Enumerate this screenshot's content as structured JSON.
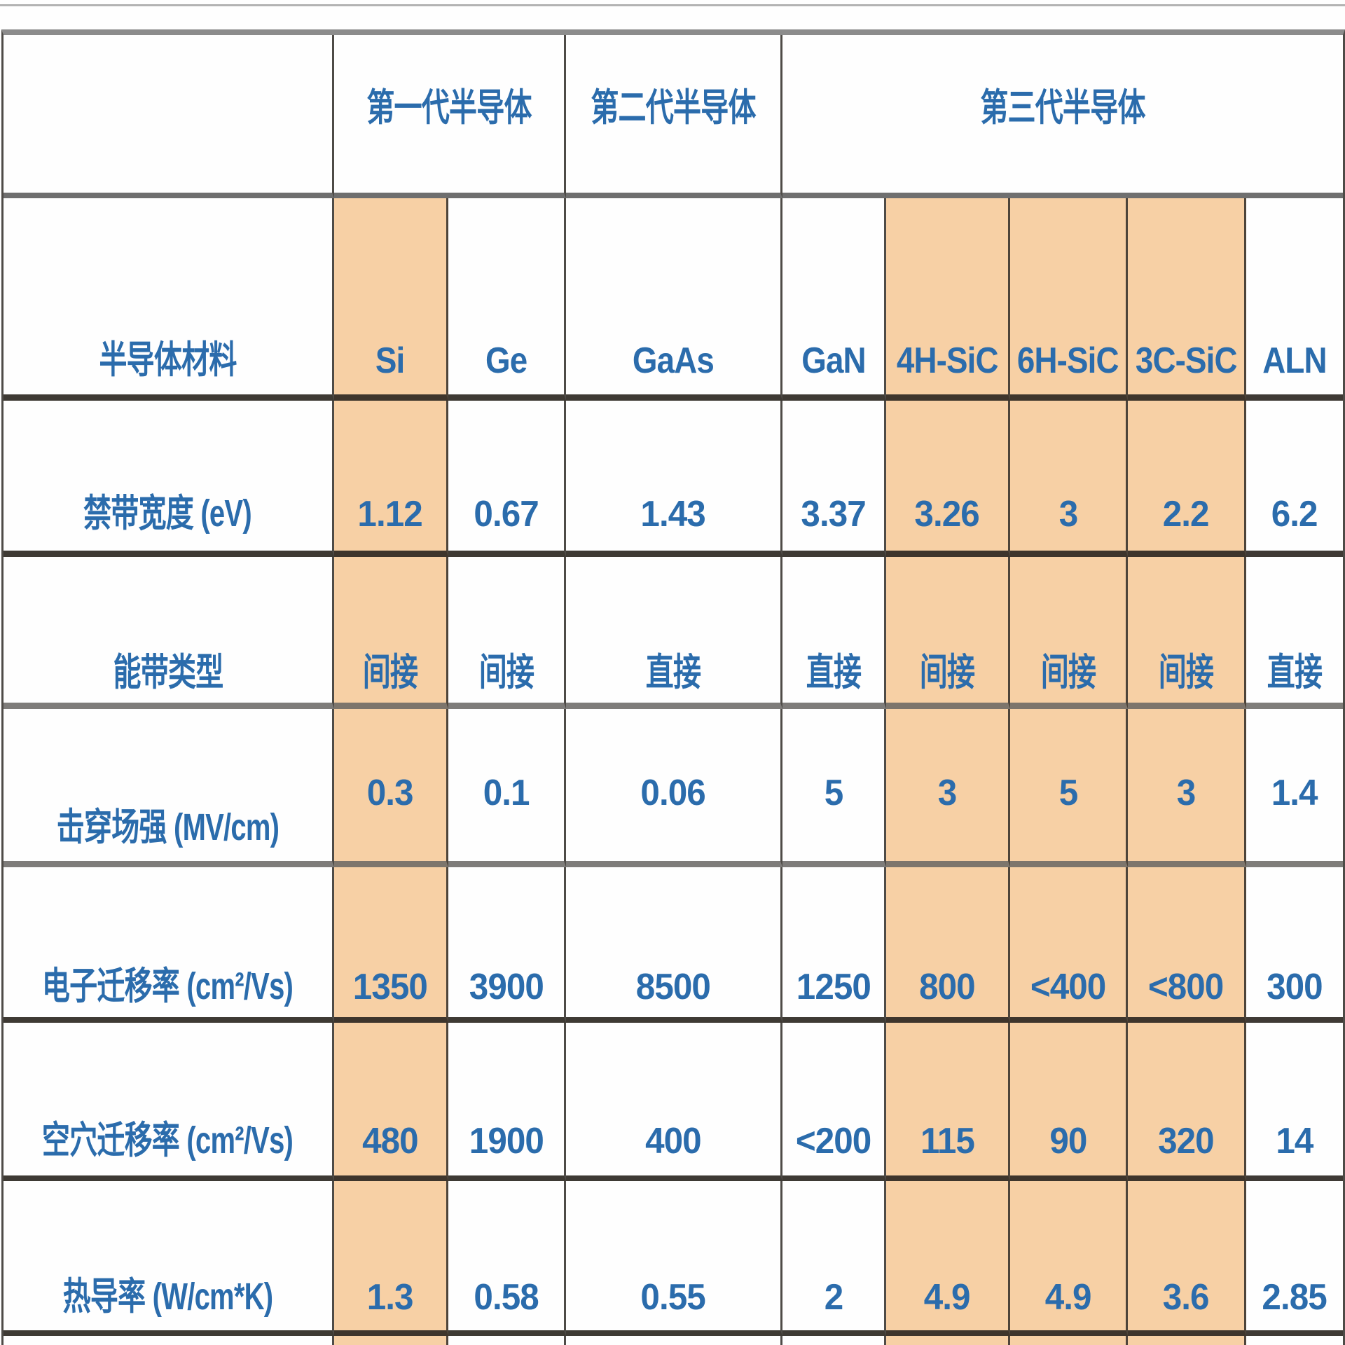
{
  "table": {
    "generation_header": {
      "corner": "",
      "gen1": "第一代半导体",
      "gen2": "第二代半导体",
      "gen3": "第三代半导体"
    },
    "columns": [
      "Si",
      "Ge",
      "GaAs",
      "GaN",
      "4H-SiC",
      "6H-SiC",
      "3C-SiC",
      "ALN"
    ],
    "highlighted_columns": [
      "Si",
      "4H-SiC",
      "6H-SiC",
      "3C-SiC"
    ],
    "material_row_label": "半导体材料",
    "rows": [
      {
        "label": "半导体材料",
        "values": [
          "Si",
          "Ge",
          "GaAs",
          "GaN",
          "4H-SiC",
          "6H-SiC",
          "3C-SiC",
          "ALN"
        ]
      },
      {
        "label": "禁带宽度 (eV)",
        "values": [
          "1.12",
          "0.67",
          "1.43",
          "3.37",
          "3.26",
          "3",
          "2.2",
          "6.2"
        ]
      },
      {
        "label": "能带类型",
        "values": [
          "间接",
          "间接",
          "直接",
          "直接",
          "间接",
          "间接",
          "间接",
          "直接"
        ]
      },
      {
        "label": "击穿场强 (MV/cm)",
        "values": [
          "0.3",
          "0.1",
          "0.06",
          "5",
          "3",
          "5",
          "3",
          "1.4"
        ]
      },
      {
        "label": "电子迁移率 (cm²/Vs)",
        "values": [
          "1350",
          "3900",
          "8500",
          "1250",
          "800",
          "<400",
          "<800",
          "300"
        ]
      },
      {
        "label": "空穴迁移率 (cm²/Vs)",
        "values": [
          "480",
          "1900",
          "400",
          "<200",
          "115",
          "90",
          "320",
          "14"
        ]
      },
      {
        "label": "热导率 (W/cm*K)",
        "values": [
          "1.3",
          "0.58",
          "0.55",
          "2",
          "4.9",
          "4.9",
          "3.6",
          "2.85"
        ]
      }
    ],
    "colors": {
      "highlight_orange": "#f7d0a5",
      "text_blue": "#2b6cac"
    }
  }
}
